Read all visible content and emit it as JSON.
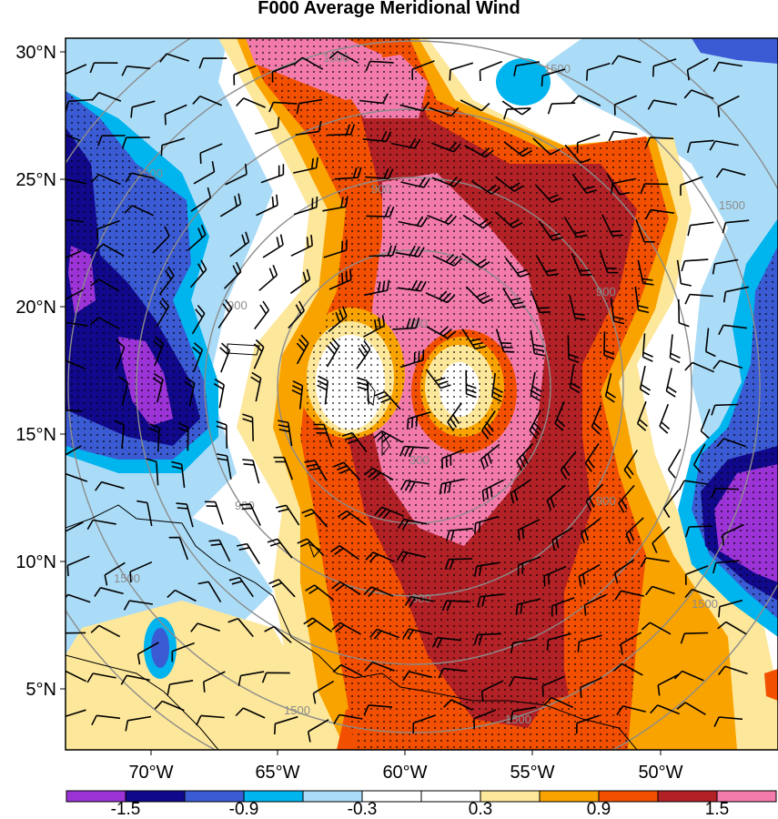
{
  "title": "F000 Average Meridional Wind",
  "lat_labels": [
    "30°N",
    "25°N",
    "20°N",
    "15°N",
    "10°N",
    "5°N"
  ],
  "lon_labels": [
    "70°W",
    "65°W",
    "60°W",
    "55°W",
    "50°W"
  ],
  "colorbar": {
    "colors": [
      "#9b33d6",
      "#11098c",
      "#3b5bd4",
      "#00b4ee",
      "#abdcf7",
      "#ffffff",
      "#ffffff",
      "#fde79a",
      "#f9a300",
      "#f24f00",
      "#b22126",
      "#f27bab"
    ],
    "tick_labels": [
      "-1.5",
      "-0.9",
      "-0.3",
      "0.3",
      "0.9",
      "1.5"
    ]
  },
  "range_rings": {
    "labels": [
      "300",
      "900",
      "1500"
    ],
    "color": "#8c8c8c"
  },
  "stipple_note": "",
  "palette": {
    "land_outline": "#000000",
    "barb_color": "#000000"
  }
}
